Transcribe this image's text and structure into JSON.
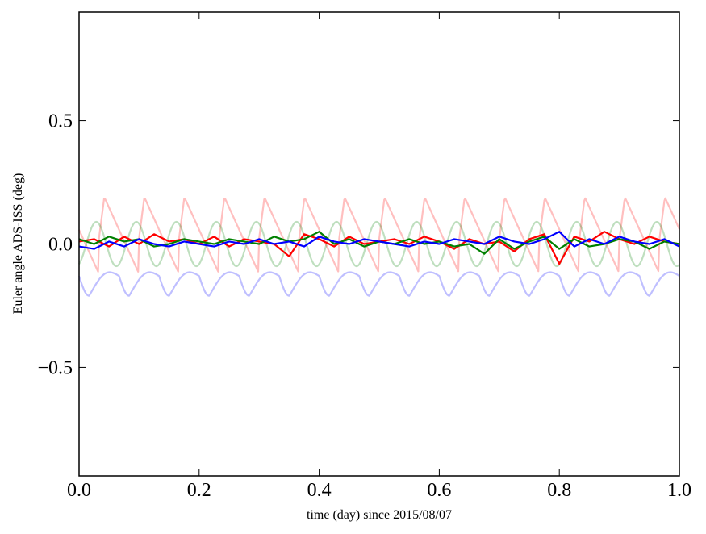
{
  "chart_data": {
    "type": "line",
    "title": "",
    "xlabel": "time (day) since 2015/08/07",
    "ylabel": "Euler angle ADS-ISS (deg)",
    "xlim": [
      0.0,
      1.0
    ],
    "ylim": [
      -0.94,
      0.94
    ],
    "grid": false,
    "legend": "none",
    "x_ticks": [
      {
        "value": 0.0,
        "label": "0.0"
      },
      {
        "value": 0.2,
        "label": "0.2"
      },
      {
        "value": 0.4,
        "label": "0.4"
      },
      {
        "value": 0.6,
        "label": "0.6"
      },
      {
        "value": 0.8,
        "label": "0.8"
      },
      {
        "value": 1.0,
        "label": "1.0"
      }
    ],
    "y_ticks": [
      {
        "value": 0.5,
        "label": "0.5"
      },
      {
        "value": 0.0,
        "label": "0.0"
      },
      {
        "value": -0.5,
        "label": "−0.5"
      }
    ],
    "x": [
      0.0,
      0.025,
      0.05,
      0.075,
      0.1,
      0.125,
      0.15,
      0.175,
      0.2,
      0.225,
      0.25,
      0.275,
      0.3,
      0.325,
      0.35,
      0.375,
      0.4,
      0.425,
      0.45,
      0.475,
      0.5,
      0.525,
      0.55,
      0.575,
      0.6,
      0.625,
      0.65,
      0.675,
      0.7,
      0.725,
      0.75,
      0.775,
      0.8,
      0.825,
      0.85,
      0.875,
      0.9,
      0.925,
      0.95,
      0.975,
      1.0
    ],
    "series": [
      {
        "color": "#ff0000",
        "opacity": 1.0,
        "width": 2.2,
        "values": [
          0.01,
          0.02,
          -0.01,
          0.03,
          0.0,
          0.04,
          0.01,
          0.02,
          0.0,
          0.03,
          -0.01,
          0.02,
          0.01,
          0.0,
          -0.05,
          0.04,
          0.02,
          -0.01,
          0.03,
          0.0,
          0.01,
          0.02,
          0.0,
          0.03,
          0.01,
          -0.02,
          0.02,
          0.0,
          0.01,
          -0.03,
          0.02,
          0.04,
          -0.08,
          0.03,
          0.01,
          0.05,
          0.02,
          0.0,
          0.03,
          0.01,
          0.0
        ]
      },
      {
        "color": "#008000",
        "opacity": 1.0,
        "width": 2.2,
        "values": [
          0.02,
          0.0,
          0.03,
          0.01,
          0.02,
          -0.01,
          0.0,
          0.02,
          0.01,
          0.0,
          0.02,
          0.01,
          0.0,
          0.03,
          0.01,
          0.02,
          0.05,
          0.0,
          0.02,
          -0.01,
          0.01,
          0.0,
          0.02,
          0.0,
          0.01,
          -0.01,
          0.0,
          -0.04,
          0.02,
          -0.02,
          0.01,
          0.03,
          -0.02,
          0.02,
          -0.01,
          0.0,
          0.02,
          0.01,
          -0.02,
          0.01,
          0.0
        ]
      },
      {
        "color": "#0000ff",
        "opacity": 1.0,
        "width": 2.2,
        "values": [
          -0.01,
          -0.02,
          0.01,
          -0.01,
          0.02,
          0.0,
          -0.01,
          0.01,
          0.0,
          -0.01,
          0.01,
          0.0,
          0.02,
          0.0,
          0.01,
          -0.01,
          0.03,
          0.01,
          0.0,
          0.02,
          0.01,
          0.0,
          -0.01,
          0.01,
          0.0,
          0.02,
          0.01,
          0.0,
          0.03,
          0.01,
          0.0,
          0.02,
          0.05,
          -0.01,
          0.02,
          0.0,
          0.03,
          0.01,
          0.0,
          0.02,
          -0.01
        ]
      },
      {
        "color": "#ff0000",
        "opacity": 0.25,
        "width": 2.2,
        "period": 0.0667,
        "phase": 0.032,
        "baseline": 0.0,
        "amplitude": 0.19,
        "shape": "sawtooth"
      },
      {
        "color": "#008000",
        "opacity": 0.25,
        "width": 2.2,
        "period": 0.0667,
        "phase": 0.012,
        "baseline": 0.0,
        "amplitude": 0.09,
        "shape": "sine"
      },
      {
        "color": "#0000ff",
        "opacity": 0.25,
        "width": 2.2,
        "period": 0.0667,
        "phase": 0.0,
        "baseline": -0.13,
        "amplitude": 0.08,
        "shape": "dip"
      }
    ]
  }
}
